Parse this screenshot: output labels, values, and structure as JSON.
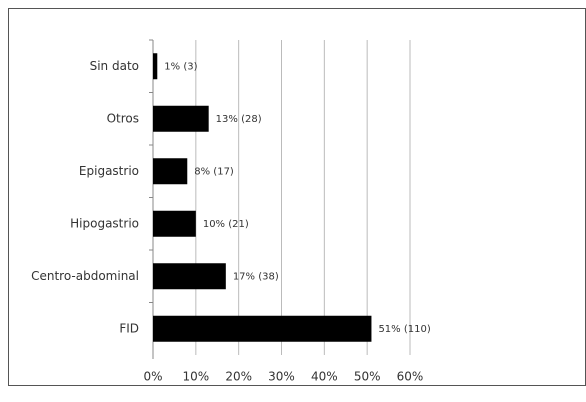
{
  "chart_data": {
    "type": "barh",
    "categories": [
      "Sin dato",
      "Otros",
      "Epigastrio",
      "Hipogastrio",
      "Centro-abdominal",
      "FID"
    ],
    "values": [
      1,
      13,
      8,
      10,
      17,
      51
    ],
    "value_labels": [
      "1% (3)",
      "13% (28)",
      "8% (17)",
      "10% (21)",
      "17% (38)",
      "51% (110)"
    ],
    "color": "#000000",
    "xlim": [
      0,
      60
    ],
    "xticks": [
      {
        "value": 0,
        "label": "0%"
      },
      {
        "value": 10,
        "label": "10%"
      },
      {
        "value": 20,
        "label": "20%"
      },
      {
        "value": 30,
        "label": "30%"
      },
      {
        "value": 40,
        "label": "40%"
      },
      {
        "value": 50,
        "label": "50%"
      },
      {
        "value": 60,
        "label": "60%"
      }
    ],
    "grid": true
  }
}
